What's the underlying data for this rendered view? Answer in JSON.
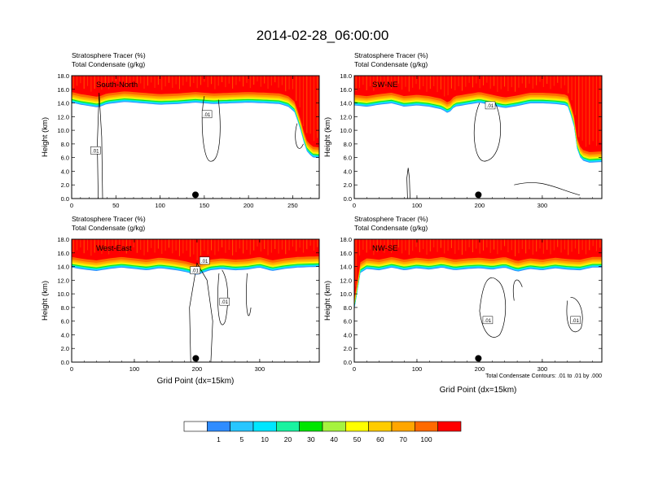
{
  "title": "2014-02-28_06:00:00",
  "panel_header": {
    "line1_label": "Stratosphere Tracer",
    "line1_unit": "(%)",
    "line2_label": "Total Condensate",
    "line2_unit": "(g/kg)"
  },
  "xlabel": "Grid Point (dx=15km)",
  "ylabel": "Height (km)",
  "contour_note": "Total Condensate Contours: .01 to .01 by .000",
  "contour_label": ".01",
  "colorbar": {
    "colors": [
      "#ffffff",
      "#2f8cff",
      "#28c6ff",
      "#00e6ff",
      "#19f3a0",
      "#00e600",
      "#a6f23f",
      "#ffff00",
      "#ffcc00",
      "#ffa600",
      "#ff6a00",
      "#ff0000"
    ],
    "labels": [
      "1",
      "5",
      "10",
      "20",
      "30",
      "40",
      "50",
      "60",
      "70",
      "100"
    ]
  },
  "chart_data": [
    {
      "type": "heatmap",
      "name": "South-North",
      "xlim": [
        0,
        280
      ],
      "ylim": [
        0,
        18
      ],
      "xticks": [
        0,
        50,
        100,
        150,
        200,
        250
      ],
      "yticks": [
        "0.0",
        "2.0",
        "4.0",
        "6.0",
        "8.0",
        "10.0",
        "12.0",
        "14.0",
        "16.0",
        "18.0"
      ],
      "tropopause_km": [
        [
          0,
          15.6
        ],
        [
          10,
          15.3
        ],
        [
          20,
          15.1
        ],
        [
          30,
          14.9
        ],
        [
          40,
          15.4
        ],
        [
          60,
          15.7
        ],
        [
          80,
          15.5
        ],
        [
          100,
          15.3
        ],
        [
          120,
          15.4
        ],
        [
          140,
          15.6
        ],
        [
          160,
          15.4
        ],
        [
          180,
          15.5
        ],
        [
          200,
          15.6
        ],
        [
          220,
          15.5
        ],
        [
          235,
          15.4
        ],
        [
          245,
          15.0
        ],
        [
          252,
          14.2
        ],
        [
          258,
          12.0
        ],
        [
          262,
          10.0
        ],
        [
          266,
          8.5
        ],
        [
          272,
          7.6
        ],
        [
          280,
          7.5
        ]
      ],
      "marker_x": 140,
      "contour_labels": [
        {
          "x": 27,
          "y": 7.0
        },
        {
          "x": 153,
          "y": 12.3
        }
      ]
    },
    {
      "type": "heatmap",
      "name": "SW-NE",
      "xlim": [
        0,
        395
      ],
      "ylim": [
        0,
        18
      ],
      "xticks": [
        0,
        100,
        200,
        300
      ],
      "yticks": [
        "0.0",
        "2.0",
        "4.0",
        "6.0",
        "8.0",
        "10.0",
        "12.0",
        "14.0",
        "16.0",
        "18.0"
      ],
      "tropopause_km": [
        [
          0,
          15.2
        ],
        [
          20,
          15.0
        ],
        [
          40,
          15.3
        ],
        [
          60,
          15.5
        ],
        [
          80,
          15.0
        ],
        [
          100,
          15.2
        ],
        [
          120,
          15.0
        ],
        [
          140,
          14.6
        ],
        [
          150,
          14.0
        ],
        [
          160,
          15.0
        ],
        [
          180,
          15.3
        ],
        [
          200,
          15.6
        ],
        [
          220,
          15.2
        ],
        [
          240,
          14.8
        ],
        [
          260,
          15.1
        ],
        [
          280,
          15.5
        ],
        [
          300,
          15.5
        ],
        [
          320,
          15.4
        ],
        [
          340,
          15.2
        ],
        [
          350,
          12.5
        ],
        [
          355,
          9.0
        ],
        [
          362,
          7.2
        ],
        [
          375,
          6.8
        ],
        [
          395,
          6.9
        ]
      ],
      "marker_x": 198,
      "contour_labels": [
        {
          "x": 217,
          "y": 13.6
        }
      ]
    },
    {
      "type": "heatmap",
      "name": "West-East",
      "xlim": [
        0,
        395
      ],
      "ylim": [
        0,
        18
      ],
      "xticks": [
        0,
        100,
        200,
        300
      ],
      "yticks": [
        "0.0",
        "2.0",
        "4.0",
        "6.0",
        "8.0",
        "10.0",
        "12.0",
        "14.0",
        "16.0",
        "18.0"
      ],
      "tropopause_km": [
        [
          0,
          15.4
        ],
        [
          20,
          15.1
        ],
        [
          40,
          14.9
        ],
        [
          60,
          15.2
        ],
        [
          80,
          15.4
        ],
        [
          100,
          15.2
        ],
        [
          120,
          15.0
        ],
        [
          140,
          15.3
        ],
        [
          160,
          15.1
        ],
        [
          180,
          14.8
        ],
        [
          200,
          14.3
        ],
        [
          220,
          15.0
        ],
        [
          240,
          15.2
        ],
        [
          260,
          15.0
        ],
        [
          280,
          15.1
        ],
        [
          300,
          15.4
        ],
        [
          320,
          14.9
        ],
        [
          340,
          15.2
        ],
        [
          360,
          15.4
        ],
        [
          395,
          15.5
        ]
      ],
      "marker_x": 198,
      "contour_labels": [
        {
          "x": 212,
          "y": 14.8
        },
        {
          "x": 197,
          "y": 13.4
        },
        {
          "x": 244,
          "y": 8.8
        }
      ]
    },
    {
      "type": "heatmap",
      "name": "NW-SE",
      "xlim": [
        0,
        395
      ],
      "ylim": [
        0,
        18
      ],
      "xticks": [
        0,
        100,
        200,
        300
      ],
      "yticks": [
        "0.0",
        "2.0",
        "4.0",
        "6.0",
        "8.0",
        "10.0",
        "12.0",
        "14.0",
        "16.0",
        "18.0"
      ],
      "tropopause_km": [
        [
          0,
          9.2
        ],
        [
          4,
          11.0
        ],
        [
          8,
          14.5
        ],
        [
          20,
          15.2
        ],
        [
          40,
          15.0
        ],
        [
          60,
          15.4
        ],
        [
          80,
          15.0
        ],
        [
          100,
          15.3
        ],
        [
          120,
          15.1
        ],
        [
          140,
          15.4
        ],
        [
          160,
          15.0
        ],
        [
          180,
          15.2
        ],
        [
          200,
          15.3
        ],
        [
          220,
          15.1
        ],
        [
          240,
          15.4
        ],
        [
          260,
          14.8
        ],
        [
          280,
          15.2
        ],
        [
          300,
          15.0
        ],
        [
          320,
          15.3
        ],
        [
          340,
          15.1
        ],
        [
          360,
          15.0
        ],
        [
          380,
          15.4
        ],
        [
          395,
          15.4
        ]
      ],
      "marker_x": 198,
      "contour_labels": [
        {
          "x": 213,
          "y": 6.1
        },
        {
          "x": 353,
          "y": 6.1
        }
      ]
    }
  ]
}
